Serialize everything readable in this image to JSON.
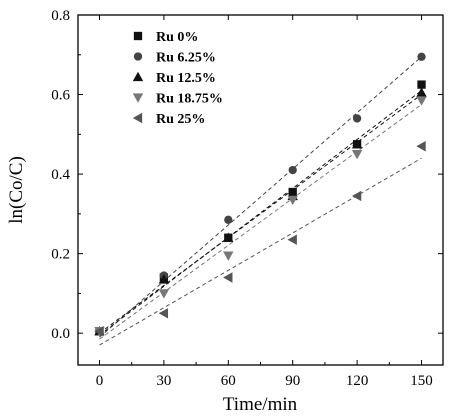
{
  "chart_data": {
    "type": "scatter",
    "xlabel": "Time/min",
    "ylabel": "ln(Co/C)",
    "xlim": [
      -10,
      160
    ],
    "ylim": [
      -0.08,
      0.8
    ],
    "xticks": [
      "0",
      "30",
      "60",
      "90",
      "120",
      "150"
    ],
    "yticks": [
      "0.0",
      "0.2",
      "0.4",
      "0.6",
      "0.8"
    ],
    "legend_position": "top-left",
    "x": [
      0,
      30,
      60,
      90,
      120,
      150
    ],
    "series": [
      {
        "name": "Ru 0%",
        "marker": "square",
        "color": "#111111",
        "values": [
          0.005,
          0.14,
          0.24,
          0.355,
          0.475,
          0.625
        ],
        "fit": [
          0.0,
          0.6
        ]
      },
      {
        "name": "Ru 6.25%",
        "marker": "circle",
        "color": "#444444",
        "values": [
          0.005,
          0.145,
          0.285,
          0.41,
          0.54,
          0.695
        ],
        "fit": [
          -0.01,
          0.695
        ]
      },
      {
        "name": "Ru 12.5%",
        "marker": "triangle-up",
        "color": "#111111",
        "values": [
          0.005,
          0.135,
          0.24,
          0.345,
          0.475,
          0.605
        ],
        "fit": [
          -0.005,
          0.61
        ]
      },
      {
        "name": "Ru 18.75%",
        "marker": "triangle-down",
        "color": "#777777",
        "values": [
          0.005,
          0.1,
          0.195,
          0.335,
          0.45,
          0.585
        ],
        "fit": [
          -0.015,
          0.575
        ]
      },
      {
        "name": "Ru 25%",
        "marker": "triangle-left",
        "color": "#555555",
        "values": [
          0.005,
          0.05,
          0.14,
          0.235,
          0.345,
          0.47
        ],
        "fit": [
          -0.03,
          0.44
        ]
      }
    ]
  }
}
